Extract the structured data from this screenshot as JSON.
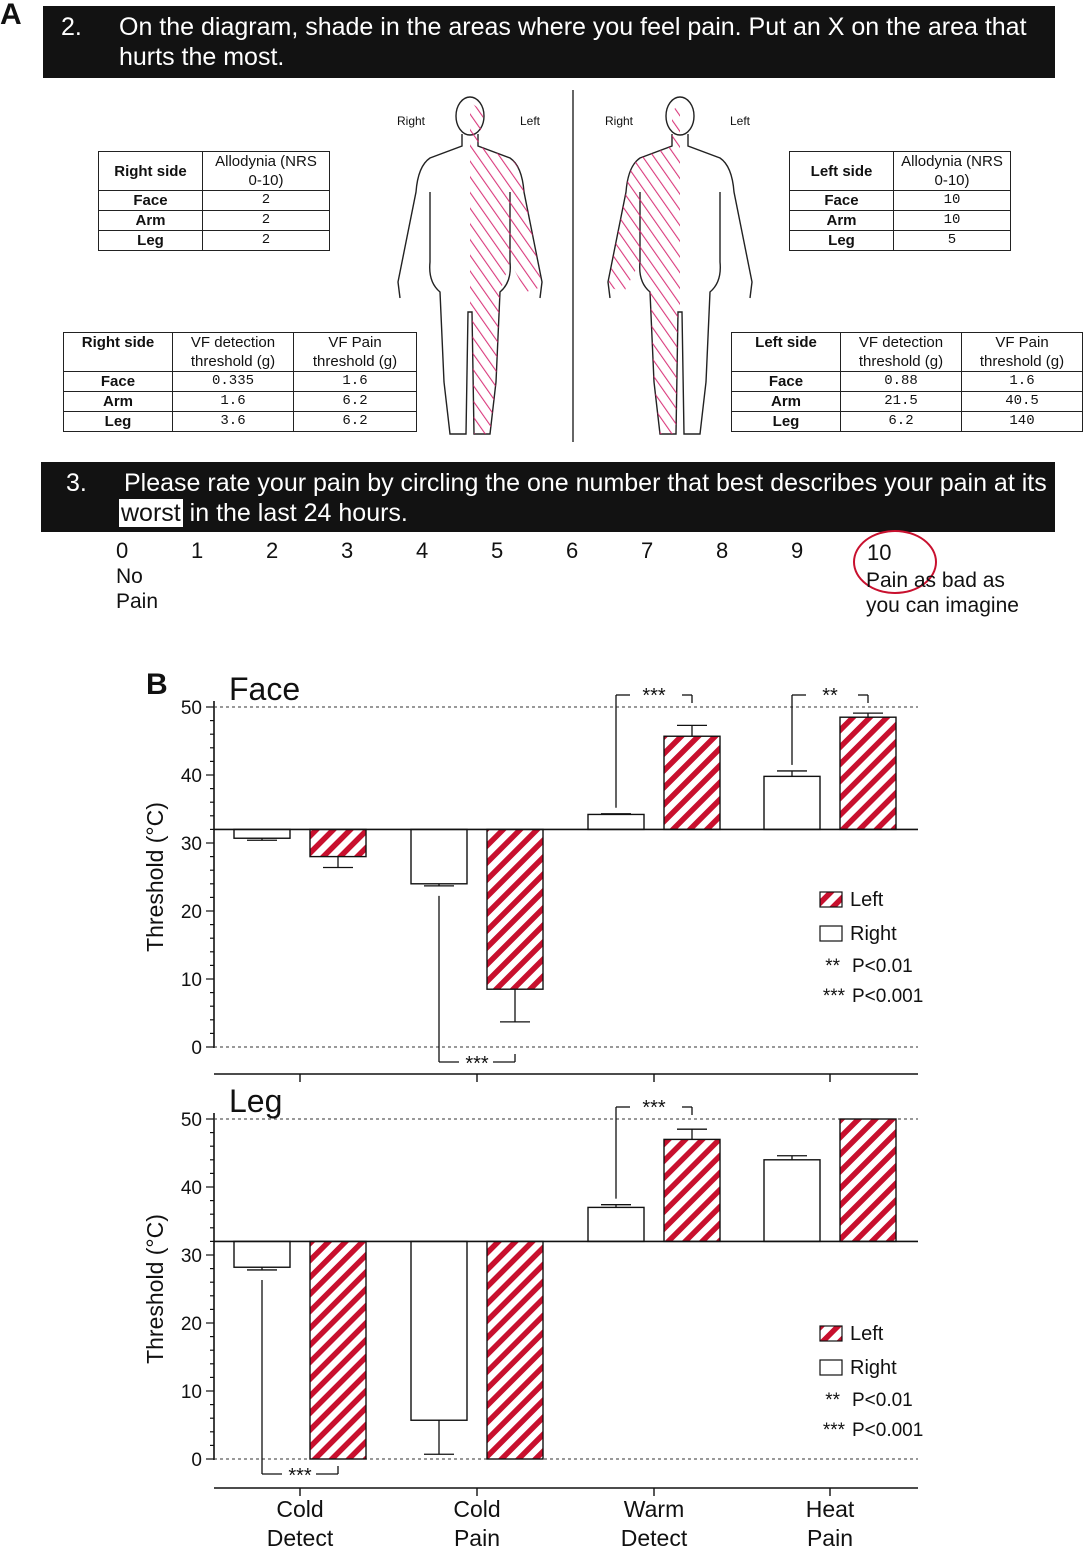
{
  "panel_labels": [
    "A",
    "B"
  ],
  "question2": {
    "number": "2.",
    "text_line1": "On the diagram, shade in the areas where you feel pain.  Put an X on the area that",
    "text_line2": "hurts the most."
  },
  "body_labels": {
    "front_right": "Right",
    "front_left": "Left",
    "back_right": "Right",
    "back_left": "Left"
  },
  "allodynia_right": {
    "headers": [
      "Right side",
      "Allodynia (NRS 0-10)"
    ],
    "rows": [
      [
        "Face",
        "2"
      ],
      [
        "Arm",
        "2"
      ],
      [
        "Leg",
        "2"
      ]
    ]
  },
  "allodynia_left": {
    "headers": [
      "Left side",
      "Allodynia (NRS 0-10)"
    ],
    "rows": [
      [
        "Face",
        "10"
      ],
      [
        "Arm",
        "10"
      ],
      [
        "Leg",
        "5"
      ]
    ]
  },
  "vf_right": {
    "headers": [
      "Right side",
      "VF detection threshold (g)",
      "VF Pain threshold (g)"
    ],
    "rows": [
      [
        "Face",
        "0.335",
        "1.6"
      ],
      [
        "Arm",
        "1.6",
        "6.2"
      ],
      [
        "Leg",
        "3.6",
        "6.2"
      ]
    ]
  },
  "vf_left": {
    "headers": [
      "Left side",
      "VF detection threshold (g)",
      "VF Pain threshold (g)"
    ],
    "rows": [
      [
        "Face",
        "0.88",
        "1.6"
      ],
      [
        "Arm",
        "21.5",
        "40.5"
      ],
      [
        "Leg",
        "6.2",
        "140"
      ]
    ]
  },
  "question3": {
    "number": "3.",
    "text_line1": "Please rate your pain by circling the one number that best describes your pain at its",
    "worst_word": "worst",
    "text_line2_rest": " in the last 24 hours."
  },
  "pain_scale": {
    "numbers": [
      "0",
      "1",
      "2",
      "3",
      "4",
      "5",
      "6",
      "7",
      "8",
      "9",
      "10"
    ],
    "low_label_1": "No",
    "low_label_2": "Pain",
    "high_label_1": "Pain as bad as",
    "high_label_2": "you can imagine",
    "circled": "10"
  },
  "colors": {
    "hatch_red": "#c8102e",
    "pain_ink": "#d6246e",
    "bar_dark": "#121212"
  },
  "chart_data": [
    {
      "type": "bar",
      "title": "Face",
      "ylabel": "Threshold (°C)",
      "baseline": 32,
      "ylim": [
        0,
        50
      ],
      "yticks": [
        "0",
        "10",
        "20",
        "30",
        "40",
        "50"
      ],
      "categories": [
        "Cold Detect",
        "Cold Pain",
        "Warm Detect",
        "Heat Pain"
      ],
      "series": [
        {
          "name": "Right",
          "values": [
            30.7,
            24,
            34.2,
            39.8
          ],
          "errors": [
            0.3,
            0.3,
            0.1,
            0.8
          ]
        },
        {
          "name": "Left",
          "values": [
            28,
            8.5,
            45.7,
            48.5
          ],
          "errors": [
            1.6,
            4.8,
            1.6,
            0.6
          ]
        }
      ],
      "significance": [
        {
          "category": "Cold Pain",
          "label": "***"
        },
        {
          "category": "Warm Detect",
          "label": "***"
        },
        {
          "category": "Heat Pain",
          "label": "**"
        }
      ],
      "legend": {
        "items": [
          "Left",
          "Right"
        ],
        "notes": [
          [
            "**",
            "P<0.01"
          ],
          [
            "***",
            "P<0.001"
          ]
        ],
        "position": "right"
      }
    },
    {
      "type": "bar",
      "title": "Leg",
      "ylabel": "Threshold (°C)",
      "baseline": 32,
      "ylim": [
        0,
        50
      ],
      "yticks": [
        "0",
        "10",
        "20",
        "30",
        "40",
        "50"
      ],
      "categories": [
        "Cold Detect",
        "Cold Pain",
        "Warm Detect",
        "Heat Pain"
      ],
      "series": [
        {
          "name": "Right",
          "values": [
            28.2,
            5.7,
            37,
            44
          ],
          "errors": [
            0.4,
            5,
            0.4,
            0.6
          ]
        },
        {
          "name": "Left",
          "values": [
            0,
            0,
            47,
            50
          ],
          "errors": [
            0,
            0,
            1.5,
            0
          ]
        }
      ],
      "significance": [
        {
          "category": "Cold Detect",
          "label": "***"
        },
        {
          "category": "Warm Detect",
          "label": "***"
        }
      ],
      "legend": {
        "items": [
          "Left",
          "Right"
        ],
        "notes": [
          [
            "**",
            "P<0.01"
          ],
          [
            "***",
            "P<0.001"
          ]
        ],
        "position": "right"
      }
    }
  ],
  "x_category_lines": [
    [
      "Cold",
      "Detect"
    ],
    [
      "Cold",
      "Pain"
    ],
    [
      "Warm",
      "Detect"
    ],
    [
      "Heat",
      "Pain"
    ]
  ]
}
